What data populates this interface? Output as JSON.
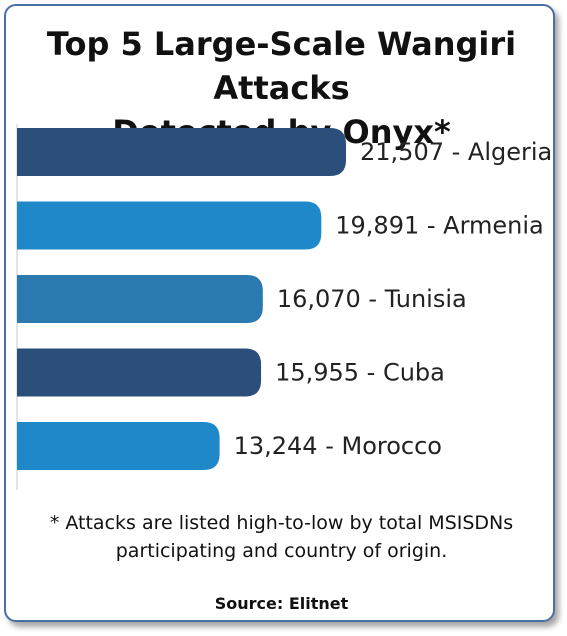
{
  "title_lines": [
    "Top 5 Large-Scale Wangiri Attacks",
    "Detected by Onyx*"
  ],
  "footnote_lines": [
    "* Attacks are listed high-to-low by total MSISDNs",
    "participating and country of origin."
  ],
  "source": "Source: Elitnet",
  "chart_data": {
    "type": "bar",
    "orientation": "horizontal",
    "categories": [
      "Algeria",
      "Armenia",
      "Tunisia",
      "Cuba",
      "Morocco"
    ],
    "values": [
      21507,
      19891,
      16070,
      15955,
      13244
    ],
    "labels": [
      "21,507 - Algeria",
      "19,891 - Armenia",
      "16,070 - Tunisia",
      "15,955 - Cuba",
      "13,244 - Morocco"
    ],
    "colors": [
      "#2b4e7a",
      "#1f88c9",
      "#2a7ab0",
      "#2b4e7a",
      "#1f88c9"
    ],
    "grid": false,
    "legend": "none"
  }
}
